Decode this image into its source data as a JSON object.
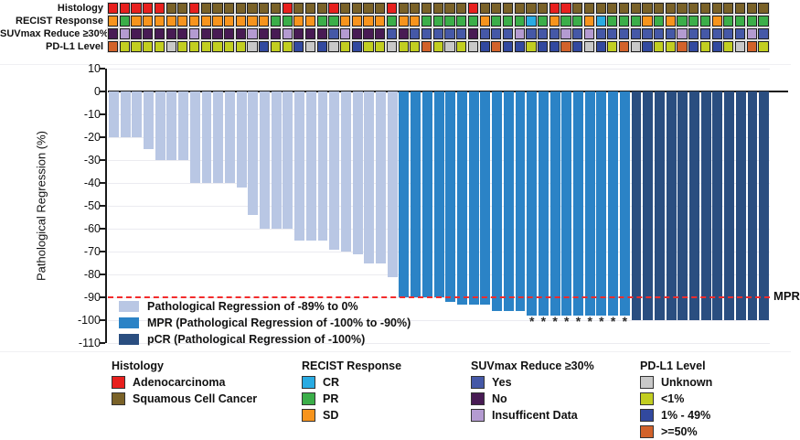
{
  "tracks": {
    "labels": [
      "Histology",
      "RECIST Response",
      "SUVmax Reduce ≥30%",
      "PD-L1 Level"
    ],
    "rows": [
      {
        "key": "histology",
        "codes": [
          "A",
          "A",
          "A",
          "A",
          "A",
          "S",
          "S",
          "A",
          "S",
          "S",
          "S",
          "S",
          "S",
          "S",
          "S",
          "A",
          "S",
          "S",
          "S",
          "A",
          "S",
          "S",
          "S",
          "S",
          "A",
          "S",
          "S",
          "S",
          "S",
          "S",
          "S",
          "A",
          "S",
          "S",
          "S",
          "S",
          "S",
          "S",
          "A",
          "A",
          "S",
          "S",
          "S",
          "S",
          "S",
          "S",
          "S",
          "S",
          "S",
          "S",
          "S",
          "S",
          "S",
          "S",
          "S",
          "S",
          "S"
        ]
      },
      {
        "key": "recist",
        "codes": [
          "O",
          "G",
          "O",
          "O",
          "O",
          "O",
          "O",
          "O",
          "O",
          "O",
          "O",
          "O",
          "O",
          "O",
          "G",
          "G",
          "O",
          "O",
          "G",
          "G",
          "O",
          "O",
          "O",
          "O",
          "G",
          "O",
          "O",
          "G",
          "G",
          "G",
          "G",
          "G",
          "O",
          "G",
          "G",
          "G",
          "C",
          "G",
          "O",
          "G",
          "G",
          "O",
          "C",
          "G",
          "G",
          "G",
          "O",
          "G",
          "O",
          "G",
          "G",
          "G",
          "O",
          "G",
          "G",
          "G",
          "G"
        ]
      },
      {
        "key": "suvmax",
        "codes": [
          "N",
          "I",
          "N",
          "N",
          "N",
          "N",
          "N",
          "I",
          "N",
          "N",
          "N",
          "N",
          "I",
          "N",
          "N",
          "I",
          "N",
          "N",
          "N",
          "Y",
          "I",
          "N",
          "N",
          "N",
          "Y",
          "N",
          "Y",
          "Y",
          "Y",
          "Y",
          "Y",
          "N",
          "Y",
          "Y",
          "Y",
          "I",
          "Y",
          "Y",
          "Y",
          "I",
          "Y",
          "I",
          "Y",
          "Y",
          "Y",
          "Y",
          "Y",
          "Y",
          "Y",
          "I",
          "Y",
          "Y",
          "Y",
          "Y",
          "Y",
          "I",
          "Y"
        ]
      },
      {
        "key": "pdl1",
        "codes": [
          "H",
          "L",
          "L",
          "L",
          "L",
          "U",
          "L",
          "L",
          "L",
          "L",
          "L",
          "L",
          "U",
          "M",
          "L",
          "L",
          "M",
          "U",
          "M",
          "U",
          "L",
          "M",
          "L",
          "L",
          "U",
          "L",
          "L",
          "H",
          "L",
          "U",
          "L",
          "U",
          "M",
          "H",
          "M",
          "M",
          "L",
          "M",
          "M",
          "H",
          "M",
          "U",
          "M",
          "L",
          "H",
          "U",
          "M",
          "L",
          "L",
          "H",
          "M",
          "L",
          "M",
          "L",
          "U",
          "H",
          "L"
        ]
      }
    ]
  },
  "code_colors": {
    "A": "#e8201e",
    "S": "#7a6228",
    "O": "#f7941d",
    "G": "#3bae49",
    "C": "#29abe2",
    "Y": "#4558a7",
    "N": "#481b54",
    "I": "#b49bd1",
    "U": "#c8c8c8",
    "L": "#c2ce21",
    "M": "#32499f",
    "H": "#d2622a"
  },
  "bar_colors": {
    "light": "#b9c7e4",
    "mpr": "#2b83c6",
    "pcr": "#2a4e80"
  },
  "chart_data": {
    "type": "bar",
    "title": "",
    "xlabel": "",
    "ylabel": "Pathological Regression (%)",
    "ylim": [
      -110,
      10
    ],
    "yticks": [
      10,
      0,
      -10,
      -20,
      -30,
      -40,
      -50,
      -60,
      -70,
      -80,
      -90,
      -100,
      -110
    ],
    "grid": true,
    "reference_line": {
      "y": -90,
      "label": "MPR",
      "color": "#f32b2b",
      "style": "dashed"
    },
    "series_note": "waterfall of pathological regression per patient; group light = -89% to 0%, mpr = -90% to -99%, pcr = -100%",
    "values": [
      -20,
      -20,
      -20,
      -25,
      -30,
      -30,
      -30,
      -40,
      -40,
      -40,
      -40,
      -42,
      -54,
      -60,
      -60,
      -60,
      -65,
      -65,
      -65,
      -69,
      -70,
      -71,
      -75,
      -75,
      -81,
      -90,
      -90,
      -90,
      -90,
      -92,
      -93,
      -93,
      -93,
      -96,
      -96,
      -96,
      -98,
      -98,
      -98,
      -98,
      -98,
      -98,
      -98,
      -98,
      -98,
      -100,
      -100,
      -100,
      -100,
      -100,
      -100,
      -100,
      -100,
      -100,
      -100,
      -100,
      -100
    ],
    "asterisk_indices": [
      36,
      37,
      38,
      39,
      40,
      41,
      42,
      43,
      44
    ],
    "asterisk_symbol": "*"
  },
  "inplot_legend": [
    {
      "label": "Pathological Regression of -89% to 0%",
      "group": "light"
    },
    {
      "label": "MPR (Pathological Regression of -100% to -90%)",
      "group": "mpr"
    },
    {
      "label": "pCR (Pathological Regression of -100%)",
      "group": "pcr"
    }
  ],
  "legends": [
    {
      "title": "Histology",
      "items": [
        {
          "label": "Adenocarcinoma",
          "code": "A"
        },
        {
          "label": "Squamous Cell Cancer",
          "code": "S"
        }
      ]
    },
    {
      "title": "RECIST Response",
      "items": [
        {
          "label": "CR",
          "code": "C"
        },
        {
          "label": "PR",
          "code": "G"
        },
        {
          "label": "SD",
          "code": "O"
        }
      ]
    },
    {
      "title": "SUVmax Reduce ≥30%",
      "items": [
        {
          "label": "Yes",
          "code": "Y"
        },
        {
          "label": "No",
          "code": "N"
        },
        {
          "label": "Insufficent Data",
          "code": "I"
        }
      ]
    },
    {
      "title": "PD-L1 Level",
      "items": [
        {
          "label": "Unknown",
          "code": "U"
        },
        {
          "label": "<1%",
          "code": "L"
        },
        {
          "label": "1% - 49%",
          "code": "M"
        },
        {
          "label": ">=50%",
          "code": "H"
        }
      ]
    }
  ]
}
